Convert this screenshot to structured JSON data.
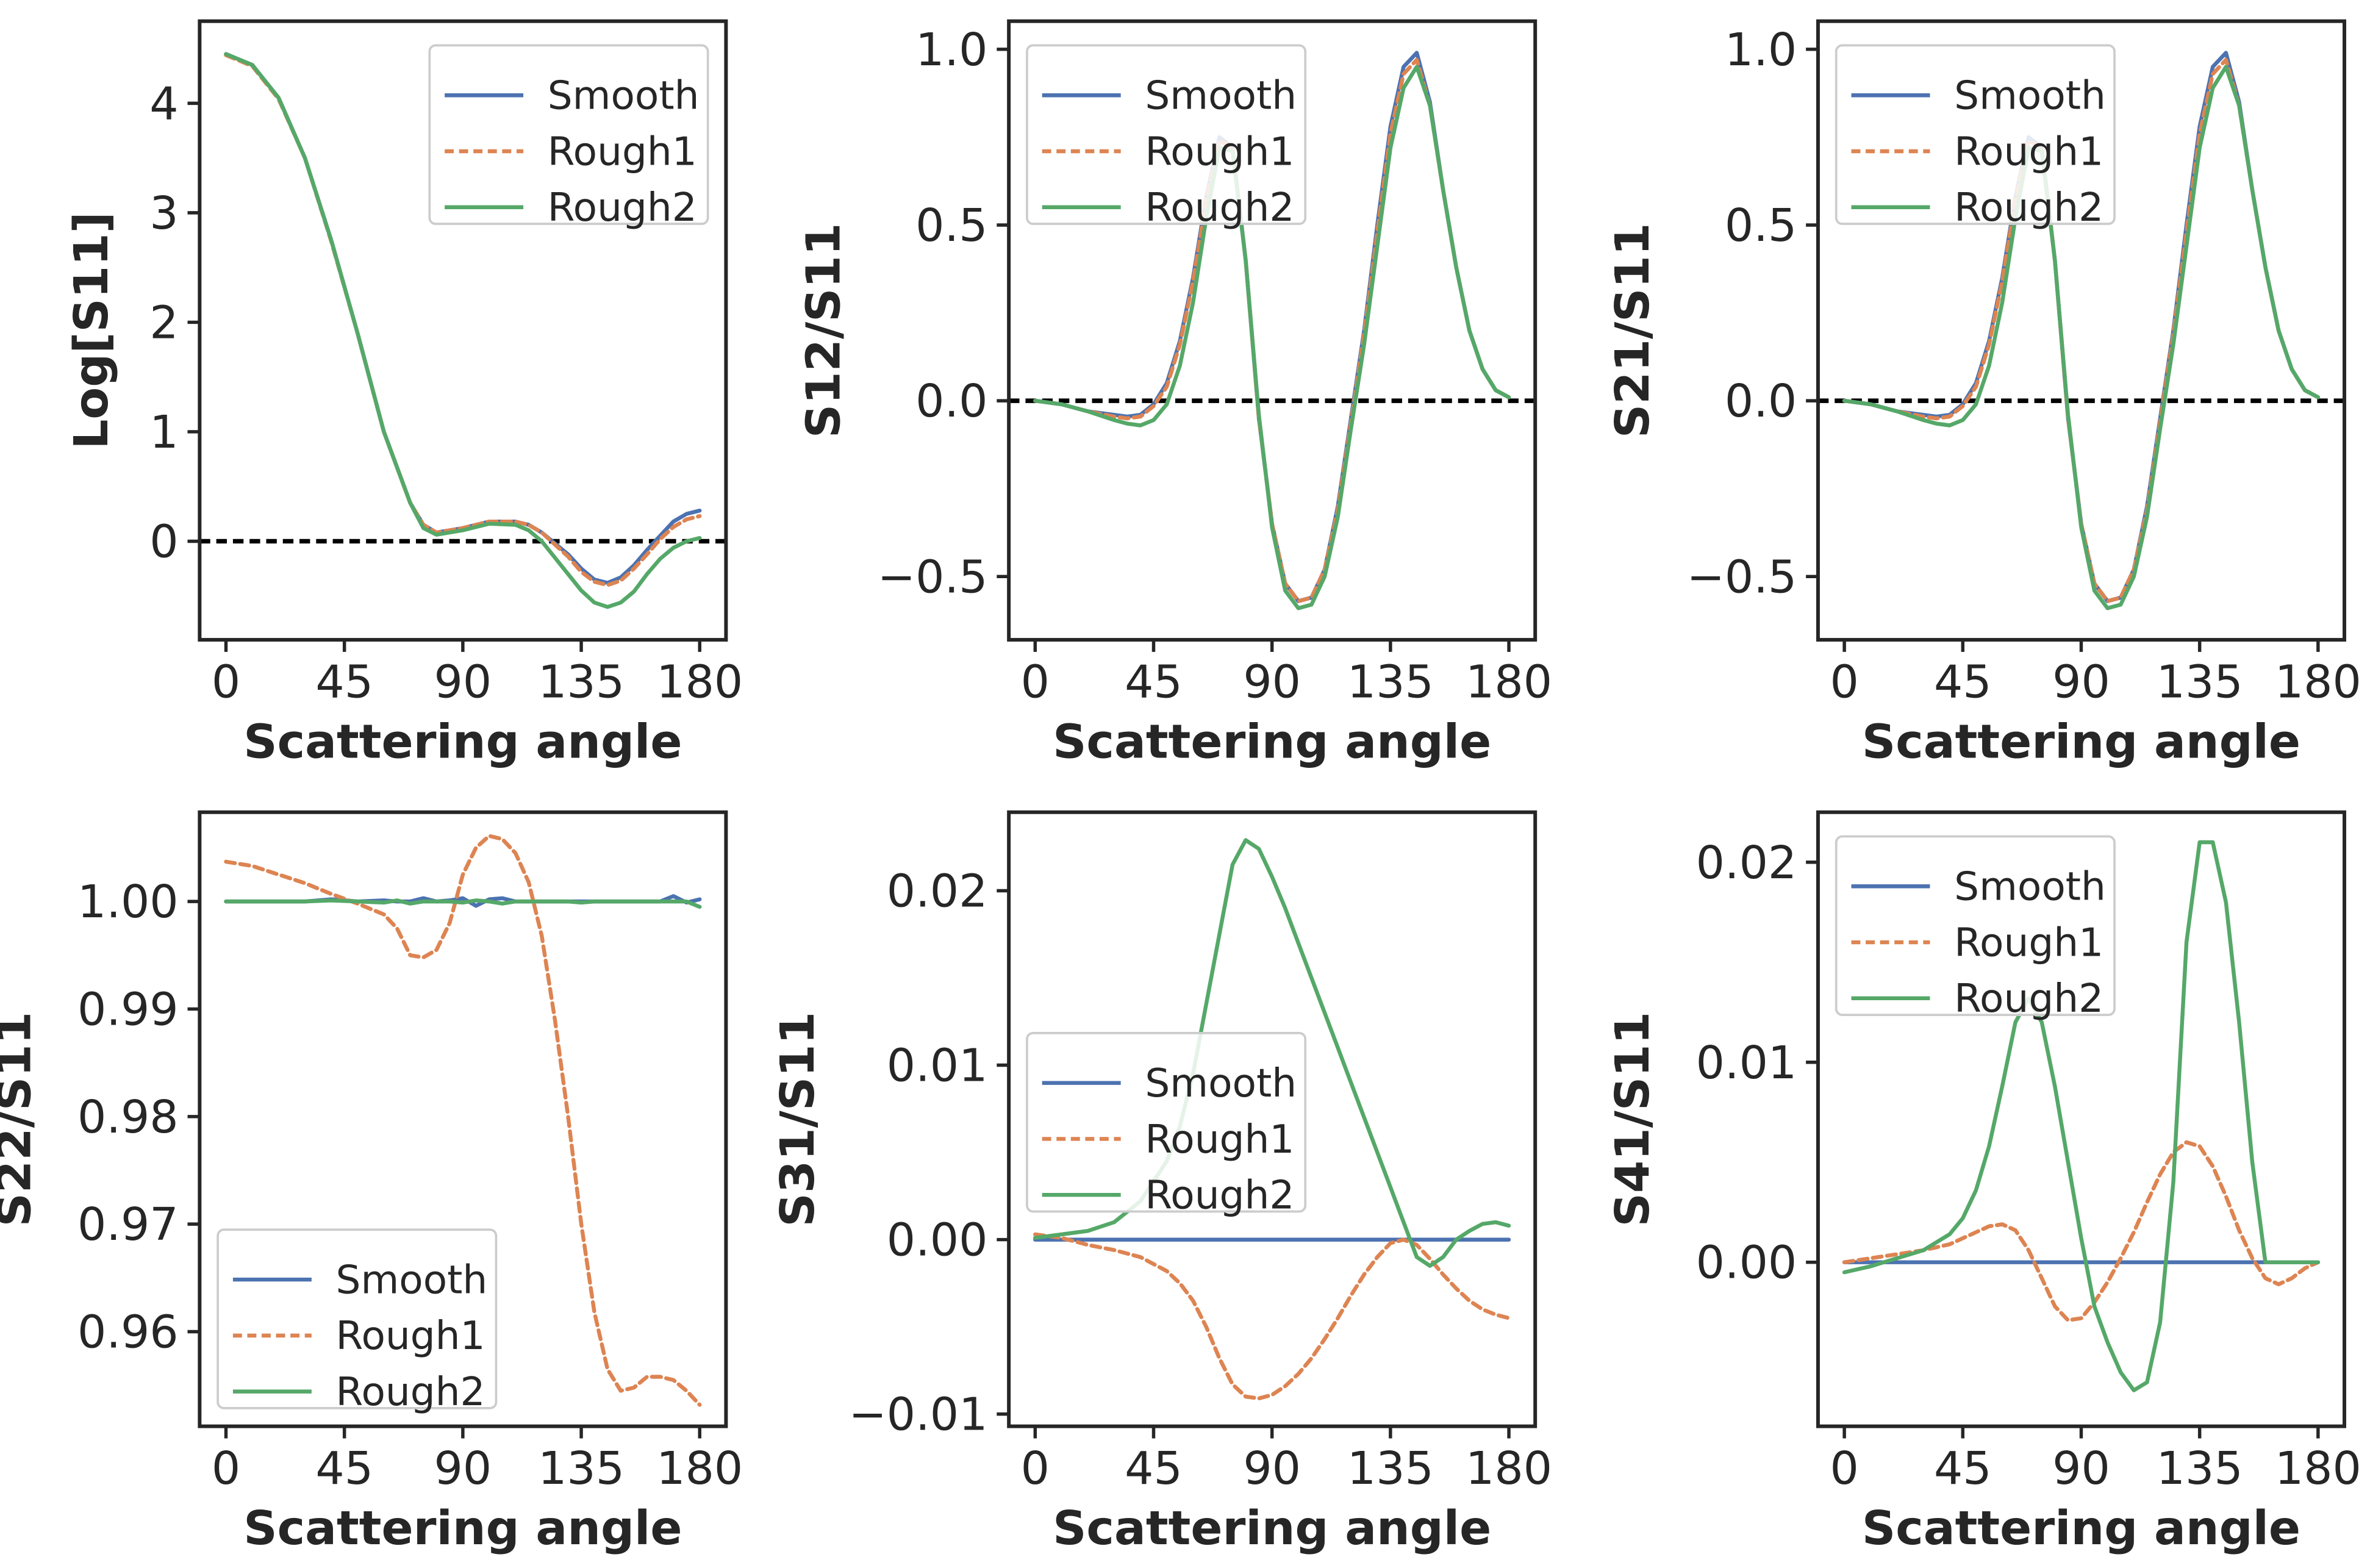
{
  "colors": {
    "Smooth": "#4c72b0",
    "Rough1": "#dd8452",
    "Rough2": "#55a868",
    "axis": "#262626",
    "zero_line": "#000000"
  },
  "chart_data": [
    {
      "type": "line",
      "xlabel": "Scattering angle",
      "ylabel": "Log[S11]",
      "xlim": [
        -10,
        190
      ],
      "ylim": [
        -0.9,
        4.75
      ],
      "xticks": [
        0,
        45,
        90,
        135,
        180
      ],
      "yticks": [
        0,
        1,
        2,
        3,
        4
      ],
      "ytick_labels": [
        "0",
        "1",
        "2",
        "3",
        "4"
      ],
      "zero_line": true,
      "legend": {
        "position": "top-right",
        "entries": [
          "Smooth",
          "Rough1",
          "Rough2"
        ]
      },
      "x": [
        0,
        10,
        20,
        30,
        40,
        50,
        60,
        70,
        75,
        80,
        85,
        90,
        100,
        110,
        115,
        120,
        125,
        130,
        135,
        140,
        145,
        150,
        155,
        160,
        165,
        170,
        175,
        180
      ],
      "series": [
        {
          "name": "Smooth",
          "style": "solid",
          "values": [
            4.45,
            4.35,
            4.05,
            3.5,
            2.75,
            1.9,
            1.0,
            0.35,
            0.15,
            0.08,
            0.1,
            0.12,
            0.18,
            0.18,
            0.15,
            0.08,
            -0.02,
            -0.12,
            -0.25,
            -0.35,
            -0.38,
            -0.33,
            -0.22,
            -0.08,
            0.05,
            0.18,
            0.25,
            0.28
          ]
        },
        {
          "name": "Rough1",
          "style": "dashed",
          "values": [
            4.44,
            4.34,
            4.04,
            3.5,
            2.74,
            1.9,
            1.0,
            0.35,
            0.15,
            0.08,
            0.1,
            0.12,
            0.18,
            0.18,
            0.15,
            0.08,
            -0.03,
            -0.14,
            -0.28,
            -0.37,
            -0.4,
            -0.36,
            -0.25,
            -0.12,
            0.02,
            0.13,
            0.2,
            0.23
          ]
        },
        {
          "name": "Rough2",
          "style": "solid",
          "values": [
            4.45,
            4.35,
            4.05,
            3.5,
            2.75,
            1.9,
            1.0,
            0.35,
            0.12,
            0.06,
            0.08,
            0.1,
            0.16,
            0.15,
            0.1,
            0.0,
            -0.15,
            -0.3,
            -0.45,
            -0.56,
            -0.6,
            -0.56,
            -0.46,
            -0.3,
            -0.16,
            -0.06,
            0.0,
            0.03
          ]
        }
      ]
    },
    {
      "type": "line",
      "xlabel": "Scattering angle",
      "ylabel": "S12/S11",
      "xlim": [
        -10,
        190
      ],
      "ylim": [
        -0.68,
        1.08
      ],
      "xticks": [
        0,
        45,
        90,
        135,
        180
      ],
      "yticks": [
        -0.5,
        0.0,
        0.5,
        1.0
      ],
      "ytick_labels": [
        "−0.5",
        "0.0",
        "0.5",
        "1.0"
      ],
      "zero_line": true,
      "legend": {
        "position": "top-left",
        "entries": [
          "Smooth",
          "Rough1",
          "Rough2"
        ]
      },
      "x": [
        0,
        10,
        20,
        30,
        35,
        40,
        45,
        50,
        55,
        60,
        65,
        70,
        75,
        80,
        85,
        90,
        95,
        100,
        105,
        110,
        115,
        120,
        125,
        130,
        135,
        140,
        145,
        150,
        155,
        160,
        165,
        170,
        175,
        180
      ],
      "series": [
        {
          "name": "Smooth",
          "style": "solid",
          "values": [
            0.0,
            -0.01,
            -0.03,
            -0.04,
            -0.045,
            -0.04,
            -0.01,
            0.05,
            0.17,
            0.35,
            0.58,
            0.75,
            0.72,
            0.4,
            -0.05,
            -0.35,
            -0.52,
            -0.57,
            -0.56,
            -0.48,
            -0.3,
            -0.05,
            0.2,
            0.5,
            0.78,
            0.95,
            0.99,
            0.85,
            0.6,
            0.38,
            0.2,
            0.09,
            0.03,
            0.01
          ]
        },
        {
          "name": "Rough1",
          "style": "dashed",
          "values": [
            0.0,
            -0.01,
            -0.03,
            -0.045,
            -0.05,
            -0.045,
            -0.015,
            0.04,
            0.16,
            0.34,
            0.57,
            0.74,
            0.72,
            0.4,
            -0.05,
            -0.35,
            -0.52,
            -0.57,
            -0.56,
            -0.48,
            -0.31,
            -0.06,
            0.19,
            0.48,
            0.76,
            0.93,
            0.97,
            0.84,
            0.6,
            0.38,
            0.2,
            0.09,
            0.03,
            0.01
          ]
        },
        {
          "name": "Rough2",
          "style": "solid",
          "values": [
            0.0,
            -0.01,
            -0.03,
            -0.055,
            -0.065,
            -0.07,
            -0.055,
            -0.01,
            0.1,
            0.28,
            0.52,
            0.72,
            0.71,
            0.4,
            -0.04,
            -0.36,
            -0.54,
            -0.59,
            -0.58,
            -0.5,
            -0.33,
            -0.08,
            0.16,
            0.44,
            0.72,
            0.89,
            0.95,
            0.84,
            0.6,
            0.38,
            0.2,
            0.09,
            0.03,
            0.01
          ]
        }
      ]
    },
    {
      "type": "line",
      "xlabel": "Scattering angle",
      "ylabel": "S21/S11",
      "xlim": [
        -10,
        190
      ],
      "ylim": [
        -0.68,
        1.08
      ],
      "xticks": [
        0,
        45,
        90,
        135,
        180
      ],
      "yticks": [
        -0.5,
        0.0,
        0.5,
        1.0
      ],
      "ytick_labels": [
        "−0.5",
        "0.0",
        "0.5",
        "1.0"
      ],
      "zero_line": true,
      "legend": {
        "position": "top-left",
        "entries": [
          "Smooth",
          "Rough1",
          "Rough2"
        ]
      },
      "x": [
        0,
        10,
        20,
        30,
        35,
        40,
        45,
        50,
        55,
        60,
        65,
        70,
        75,
        80,
        85,
        90,
        95,
        100,
        105,
        110,
        115,
        120,
        125,
        130,
        135,
        140,
        145,
        150,
        155,
        160,
        165,
        170,
        175,
        180
      ],
      "series": [
        {
          "name": "Smooth",
          "style": "solid",
          "values": [
            0.0,
            -0.01,
            -0.03,
            -0.04,
            -0.045,
            -0.04,
            -0.01,
            0.05,
            0.17,
            0.35,
            0.58,
            0.75,
            0.72,
            0.4,
            -0.05,
            -0.35,
            -0.52,
            -0.57,
            -0.56,
            -0.48,
            -0.3,
            -0.05,
            0.2,
            0.5,
            0.78,
            0.95,
            0.99,
            0.85,
            0.6,
            0.38,
            0.2,
            0.09,
            0.03,
            0.01
          ]
        },
        {
          "name": "Rough1",
          "style": "dashed",
          "values": [
            0.0,
            -0.01,
            -0.03,
            -0.045,
            -0.05,
            -0.045,
            -0.015,
            0.04,
            0.16,
            0.34,
            0.57,
            0.74,
            0.72,
            0.4,
            -0.05,
            -0.35,
            -0.52,
            -0.57,
            -0.56,
            -0.48,
            -0.31,
            -0.06,
            0.19,
            0.48,
            0.76,
            0.93,
            0.97,
            0.84,
            0.6,
            0.38,
            0.2,
            0.09,
            0.03,
            0.01
          ]
        },
        {
          "name": "Rough2",
          "style": "solid",
          "values": [
            0.0,
            -0.01,
            -0.03,
            -0.055,
            -0.065,
            -0.07,
            -0.055,
            -0.01,
            0.1,
            0.28,
            0.52,
            0.72,
            0.71,
            0.4,
            -0.04,
            -0.36,
            -0.54,
            -0.59,
            -0.58,
            -0.5,
            -0.33,
            -0.08,
            0.16,
            0.44,
            0.72,
            0.89,
            0.95,
            0.84,
            0.6,
            0.38,
            0.2,
            0.09,
            0.03,
            0.01
          ]
        }
      ]
    },
    {
      "type": "line",
      "xlabel": "Scattering angle",
      "ylabel": "S22/S11",
      "xlim": [
        -10,
        190
      ],
      "ylim": [
        0.9512,
        1.0083
      ],
      "xticks": [
        0,
        45,
        90,
        135,
        180
      ],
      "yticks": [
        0.96,
        0.97,
        0.98,
        0.99,
        1.0
      ],
      "ytick_labels": [
        "0.96",
        "0.97",
        "0.98",
        "0.99",
        "1.00"
      ],
      "zero_line": false,
      "legend": {
        "position": "bottom-left",
        "entries": [
          "Smooth",
          "Rough1",
          "Rough2"
        ]
      },
      "x": [
        0,
        10,
        20,
        30,
        40,
        50,
        60,
        65,
        70,
        75,
        80,
        85,
        90,
        95,
        100,
        105,
        110,
        115,
        120,
        125,
        130,
        135,
        140,
        145,
        150,
        155,
        160,
        165,
        170,
        175,
        180
      ],
      "series": [
        {
          "name": "Smooth",
          "style": "solid",
          "values": [
            1.0,
            1.0,
            1.0,
            1.0,
            1.0002,
            1.0,
            1.0001,
            1.0,
            1.0,
            1.0003,
            1.0,
            1.0001,
            1.0003,
            0.9996,
            1.0002,
            1.0003,
            1.0,
            1.0,
            1.0,
            1.0,
            1.0,
            1.0,
            1.0,
            1.0,
            1.0,
            1.0,
            1.0,
            1.0,
            1.0005,
            0.9999,
            1.0002
          ]
        },
        {
          "name": "Rough1",
          "style": "dashed",
          "values": [
            1.0037,
            1.0033,
            1.0025,
            1.0017,
            1.0007,
            0.9998,
            0.9988,
            0.9975,
            0.995,
            0.9948,
            0.9955,
            0.998,
            1.0025,
            1.005,
            1.0061,
            1.0058,
            1.0045,
            1.0018,
            0.9968,
            0.989,
            0.98,
            0.97,
            0.9618,
            0.9565,
            0.9545,
            0.9548,
            0.9558,
            0.9558,
            0.9555,
            0.9545,
            0.9532
          ]
        },
        {
          "name": "Rough2",
          "style": "solid",
          "values": [
            1.0,
            1.0,
            1.0,
            1.0,
            1.0001,
            1.0,
            0.9999,
            1.0001,
            0.9998,
            1.0,
            1.0,
            1.0,
            0.9999,
            1.0001,
            1.0,
            0.9998,
            1.0,
            1.0,
            1.0,
            1.0,
            1.0,
            0.9999,
            1.0,
            1.0,
            1.0,
            1.0,
            1.0,
            1.0,
            1.0,
            1.0,
            0.9995
          ]
        }
      ]
    },
    {
      "type": "line",
      "xlabel": "Scattering angle",
      "ylabel": "S31/S11",
      "xlim": [
        -10,
        190
      ],
      "ylim": [
        -0.0107,
        0.0245
      ],
      "xticks": [
        0,
        45,
        90,
        135,
        180
      ],
      "yticks": [
        -0.01,
        0.0,
        0.01,
        0.02
      ],
      "ytick_labels": [
        "−0.01",
        "0.00",
        "0.01",
        "0.02"
      ],
      "zero_line": false,
      "legend": {
        "position": "center-left",
        "entries": [
          "Smooth",
          "Rough1",
          "Rough2"
        ]
      },
      "x": [
        0,
        10,
        20,
        30,
        40,
        50,
        55,
        60,
        65,
        70,
        75,
        80,
        85,
        90,
        95,
        100,
        105,
        110,
        115,
        120,
        125,
        130,
        135,
        140,
        145,
        150,
        155,
        160,
        165,
        170,
        175,
        180
      ],
      "series": [
        {
          "name": "Smooth",
          "style": "solid",
          "values": [
            0,
            0,
            0,
            0,
            0,
            0,
            0,
            0,
            0,
            0,
            0,
            0,
            0,
            0,
            0,
            0,
            0,
            0,
            0,
            0,
            0,
            0,
            0,
            0,
            0,
            0,
            0,
            0,
            0,
            0,
            0,
            0
          ]
        },
        {
          "name": "Rough1",
          "style": "dashed",
          "values": [
            0.0003,
            0.0001,
            -0.0003,
            -0.0006,
            -0.001,
            -0.0018,
            -0.0025,
            -0.0035,
            -0.005,
            -0.0068,
            -0.0083,
            -0.009,
            -0.0091,
            -0.0089,
            -0.0084,
            -0.0077,
            -0.0068,
            -0.0057,
            -0.0045,
            -0.0032,
            -0.002,
            -0.001,
            -0.0002,
            0.0,
            -0.0003,
            -0.0011,
            -0.002,
            -0.0028,
            -0.0035,
            -0.004,
            -0.0043,
            -0.0045
          ]
        },
        {
          "name": "Rough2",
          "style": "solid",
          "values": [
            0.0001,
            0.0003,
            0.0005,
            0.001,
            0.0022,
            0.0045,
            0.0065,
            0.0095,
            0.0135,
            0.0175,
            0.0215,
            0.0229,
            0.0224,
            0.0208,
            0.019,
            0.017,
            0.015,
            0.013,
            0.011,
            0.009,
            0.007,
            0.005,
            0.003,
            0.001,
            -0.001,
            -0.0015,
            -0.001,
            0.0,
            0.0005,
            0.0009,
            0.001,
            0.0008
          ]
        }
      ]
    },
    {
      "type": "line",
      "xlabel": "Scattering angle",
      "ylabel": "S41/S11",
      "xlim": [
        -10,
        190
      ],
      "ylim": [
        -0.0082,
        0.0225
      ],
      "xticks": [
        0,
        45,
        90,
        135,
        180
      ],
      "yticks": [
        0.0,
        0.01,
        0.02
      ],
      "ytick_labels": [
        "0.00",
        "0.01",
        "0.02"
      ],
      "zero_line": false,
      "legend": {
        "position": "top-left",
        "entries": [
          "Smooth",
          "Rough1",
          "Rough2"
        ]
      },
      "x": [
        0,
        10,
        20,
        30,
        40,
        45,
        50,
        55,
        60,
        65,
        70,
        75,
        80,
        85,
        90,
        95,
        100,
        105,
        110,
        115,
        120,
        125,
        130,
        135,
        140,
        145,
        150,
        155,
        160,
        165,
        170,
        175,
        180
      ],
      "series": [
        {
          "name": "Smooth",
          "style": "solid",
          "values": [
            0,
            0,
            0,
            0,
            0,
            0,
            0,
            0,
            0,
            0,
            0,
            0,
            0,
            0,
            0,
            0,
            0,
            0,
            0,
            0,
            0,
            0,
            0,
            0,
            0,
            0,
            0,
            0,
            0,
            0,
            0,
            0,
            0
          ]
        },
        {
          "name": "Rough1",
          "style": "dashed",
          "values": [
            0.0,
            0.0002,
            0.0004,
            0.0006,
            0.0009,
            0.0012,
            0.0015,
            0.0018,
            0.0019,
            0.0016,
            0.0006,
            -0.0008,
            -0.0022,
            -0.0029,
            -0.0028,
            -0.002,
            -0.001,
            0.0002,
            0.0015,
            0.003,
            0.0044,
            0.0055,
            0.006,
            0.0058,
            0.0048,
            0.0033,
            0.0016,
            0.0002,
            -0.0008,
            -0.0011,
            -0.0008,
            -0.0003,
            0.0
          ]
        },
        {
          "name": "Rough2",
          "style": "solid",
          "values": [
            -0.0005,
            -0.0002,
            0.0002,
            0.0006,
            0.0014,
            0.0022,
            0.0036,
            0.0058,
            0.0088,
            0.012,
            0.0132,
            0.012,
            0.0088,
            0.005,
            0.0012,
            -0.0022,
            -0.004,
            -0.0055,
            -0.0064,
            -0.006,
            -0.003,
            0.004,
            0.016,
            0.021,
            0.021,
            0.018,
            0.012,
            0.005,
            0.0,
            0.0,
            0.0,
            0.0,
            0.0
          ]
        }
      ]
    }
  ]
}
